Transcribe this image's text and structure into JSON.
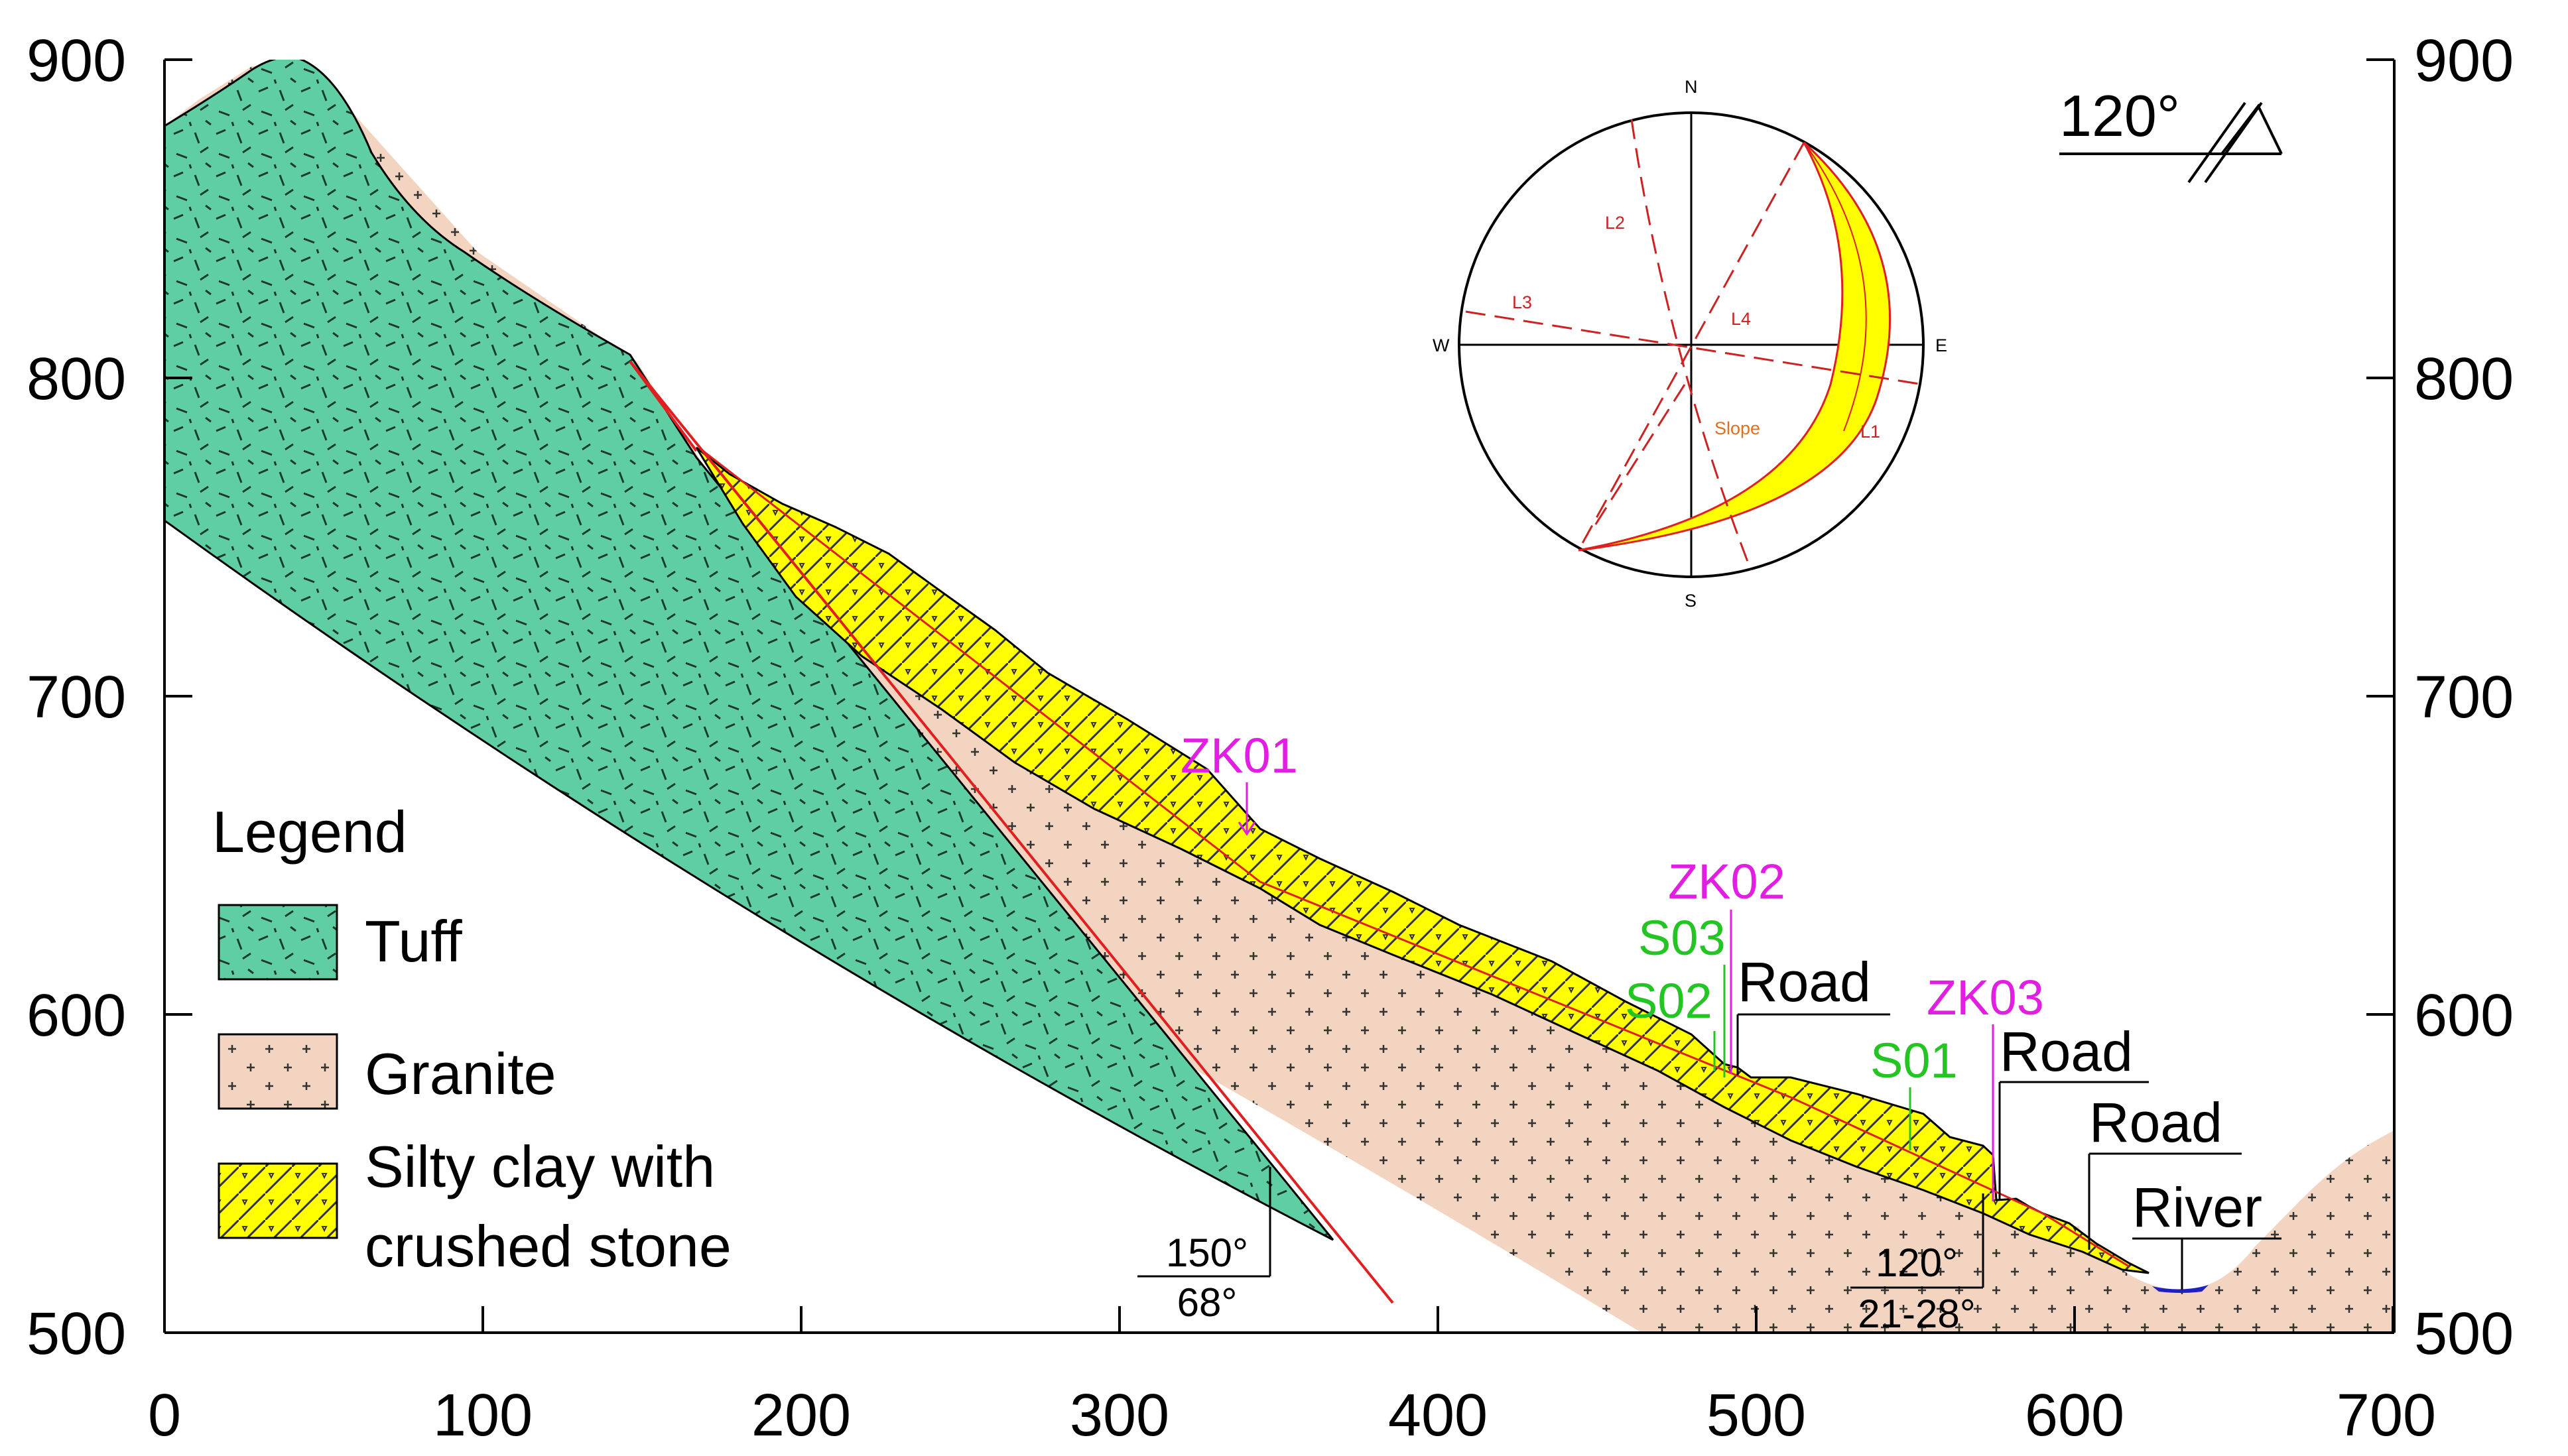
{
  "axes": {
    "x_ticks": [
      "0",
      "100",
      "200",
      "300",
      "400",
      "500",
      "600",
      "700"
    ],
    "y_ticks_left": [
      "900",
      "800",
      "700",
      "600",
      "500"
    ],
    "y_ticks_right": [
      "900",
      "800",
      "700",
      "600",
      "500"
    ],
    "x_range": [
      0,
      700
    ],
    "y_range": [
      500,
      900
    ]
  },
  "legend": {
    "title": "Legend",
    "items": [
      {
        "label": "Tuff",
        "color": "#5fcfa3"
      },
      {
        "label": "Granite",
        "color": "#f3d4c0"
      },
      {
        "label_line1": "Silty clay with",
        "label_line2": "crushed stone",
        "color": "#ffff00"
      }
    ]
  },
  "orientation": {
    "value": "120°"
  },
  "fault": {
    "dip_direction": "150°",
    "dip_angle": "68°"
  },
  "slope_attitude": {
    "dip_direction": "120°",
    "dip_angle": "21-28°"
  },
  "boreholes": [
    "ZK01",
    "ZK02",
    "ZK03"
  ],
  "samples": [
    "S03",
    "S02",
    "S01"
  ],
  "features": {
    "road_1": "Road",
    "road_2": "Road",
    "road_3": "Road",
    "river": "River"
  },
  "stereonet": {
    "north": "N",
    "south": "S",
    "east": "E",
    "west": "W",
    "lines": [
      "L1",
      "L2",
      "L3",
      "L4"
    ],
    "slope": "Slope"
  },
  "colors": {
    "tuff": "#5fcfa3",
    "granite": "#f3d4c0",
    "clay": "#ffff00",
    "fault_line": "#e02020",
    "borehole_text": "#e11ee1",
    "sample_text": "#22c522",
    "river": "#2020c0"
  }
}
